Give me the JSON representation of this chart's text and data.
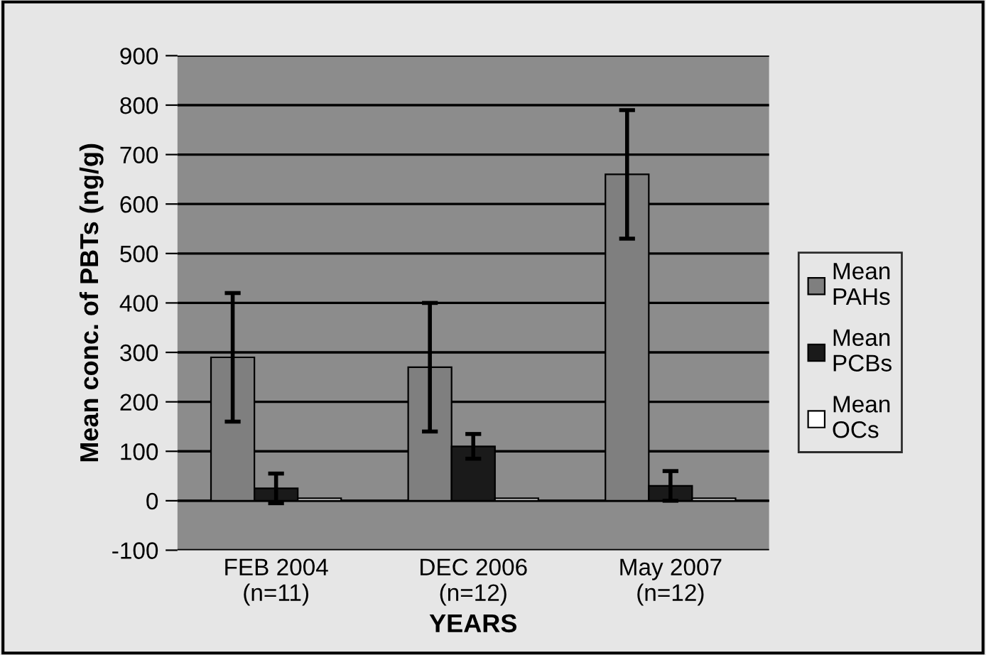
{
  "chart_data": {
    "type": "bar",
    "xlabel": "YEARS",
    "ylabel": "Mean conc. of PBTs (ng/g)",
    "categories": [
      "FEB 2004\n(n=11)",
      "DEC 2006\n(n=12)",
      "May 2007\n(n=12)"
    ],
    "series": [
      {
        "name": "Mean\nPAHs",
        "color": "#7f7f7f",
        "values": [
          290,
          270,
          660
        ],
        "errors": [
          130,
          130,
          130
        ]
      },
      {
        "name": "Mean\nPCBs",
        "color": "#1a1a1a",
        "values": [
          25,
          110,
          30
        ],
        "errors": [
          30,
          25,
          30
        ]
      },
      {
        "name": "Mean\nOCs",
        "color": "#ffffff",
        "values": [
          5,
          5,
          5
        ]
      }
    ],
    "ylim": [
      -100,
      900
    ],
    "yticks": [
      -100,
      0,
      100,
      200,
      300,
      400,
      500,
      600,
      700,
      800,
      900
    ],
    "grid": "y",
    "legend": "right"
  }
}
